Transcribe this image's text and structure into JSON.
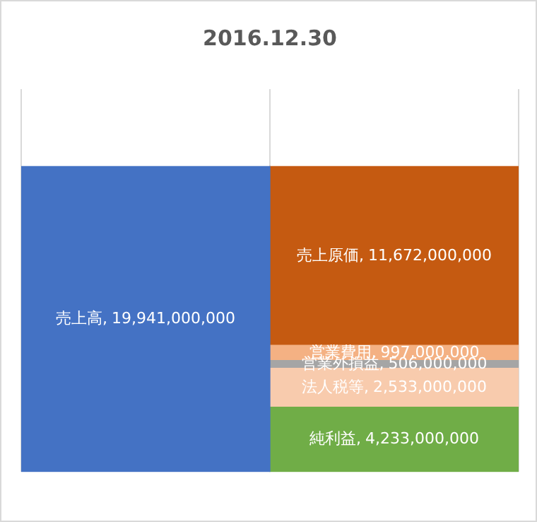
{
  "chart_data": {
    "type": "bar",
    "title": "2016.12.30",
    "categories": [
      null,
      null
    ],
    "stacked": true,
    "grid": "x",
    "series": [
      {
        "name": "売上高,",
        "color": "#4472c4",
        "values": [
          19941000000,
          null
        ],
        "value_labels": [
          "19,941,000,000",
          null
        ]
      },
      {
        "name": "純利益,",
        "color": "#70ad47",
        "values": [
          null,
          4233000000
        ],
        "value_labels": [
          null,
          "4,233,000,000"
        ]
      },
      {
        "name": "法人税等,",
        "color": "#f8cbad",
        "values": [
          null,
          2533000000
        ],
        "value_labels": [
          null,
          "2,533,000,000"
        ]
      },
      {
        "name": "営業外損益,",
        "color": "#a5a5a5",
        "values": [
          null,
          506000000
        ],
        "value_labels": [
          null,
          "506,000,000"
        ]
      },
      {
        "name": "営業費用,",
        "color": "#f4b183",
        "values": [
          null,
          997000000
        ],
        "value_labels": [
          null,
          "997,000,000"
        ]
      },
      {
        "name": "売上原価,",
        "color": "#c55a11",
        "values": [
          null,
          11672000000
        ],
        "value_labels": [
          null,
          "11,672,000,000"
        ]
      }
    ]
  }
}
